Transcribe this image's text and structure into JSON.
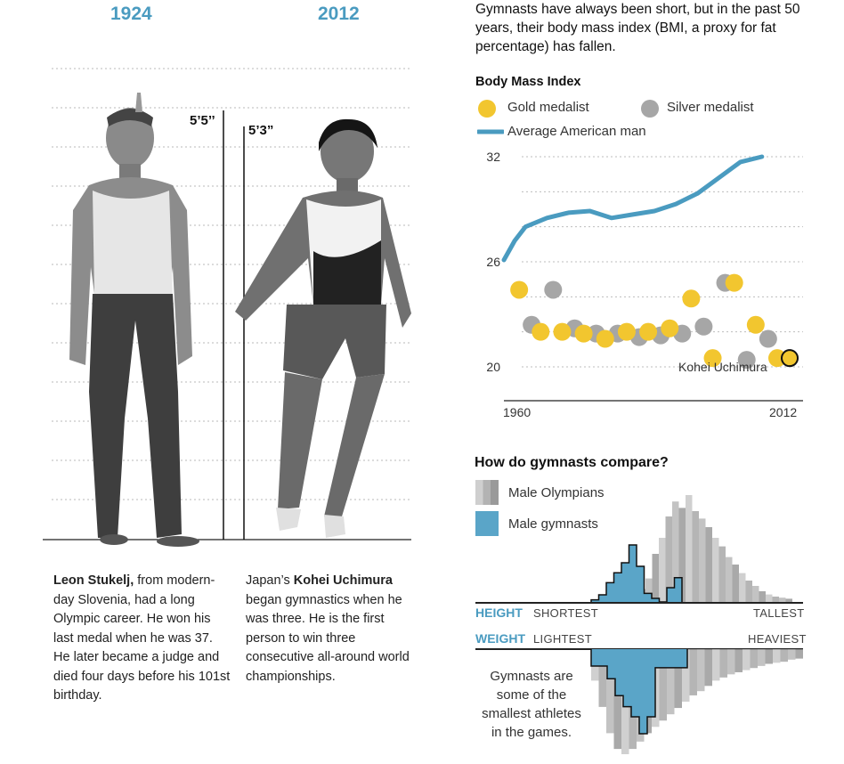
{
  "header": {
    "year_left": "1924",
    "year_right": "2012",
    "intro": "Gymnasts have always been short, but in the past 50 years, their body mass index (BMI, a proxy for fat percentage) has fallen."
  },
  "figures": {
    "left_height": "5’5’’",
    "right_height": "5’3”"
  },
  "captions": {
    "left_name": "Leon Stukelj,",
    "left_text": " from modern-day Slovenia, had a long Olympic career. He won his last medal when he was 37. He later became a judge and died four days before his 101st birthday.",
    "right_prefix": "Japan’s ",
    "right_name": "Kohei Uchimura",
    "right_text": " began gymnastics when he was three. He is the first person to win three consecutive all-around world championships."
  },
  "bmi_chart": {
    "title": "Body Mass Index",
    "legend_gold": "Gold medalist",
    "legend_silver": "Silver medalist",
    "legend_line": "Average American man",
    "annotation": "Kohei Uchimura",
    "x_start_label": "1960",
    "x_end_label": "2012",
    "y_ticks": [
      "32",
      "26",
      "20"
    ]
  },
  "compare": {
    "title": "How do gymnasts compare?",
    "legend_olympians": "Male Olympians",
    "legend_gymnasts": "Male gymnasts",
    "height_label": "HEIGHT",
    "height_low": "SHORTEST",
    "height_high": "TALLEST",
    "weight_label": "WEIGHT",
    "weight_low": "LIGHTEST",
    "weight_high": "HEAVIEST",
    "note": "Gymnasts are some of the smallest athletes in the games."
  },
  "colors": {
    "accent_blue": "#4a9bc0",
    "gold": "#f2c62f",
    "silver": "#a6a6a6",
    "hist_gray": "#9a9a9a",
    "hist_blue": "#5aa5c8"
  },
  "chart_data": [
    {
      "type": "scatter",
      "title": "Body Mass Index",
      "x_range": [
        1960,
        2012
      ],
      "ylim": [
        19,
        33
      ],
      "y_ticks": [
        20,
        26,
        32
      ],
      "series": [
        {
          "name": "Average American man",
          "kind": "line",
          "x": [
            1960,
            1962,
            1964,
            1968,
            1972,
            1976,
            1980,
            1984,
            1988,
            1992,
            1996,
            2000,
            2004,
            2008
          ],
          "y": [
            26.1,
            27.2,
            28.0,
            28.5,
            28.8,
            28.9,
            28.5,
            28.7,
            28.9,
            29.3,
            29.9,
            30.8,
            31.7,
            32.0
          ]
        },
        {
          "name": "Gold medalist",
          "kind": "points",
          "x": [
            1964,
            1968,
            1972,
            1976,
            1980,
            1984,
            1988,
            1992,
            1996,
            2000,
            2004,
            2008,
            2012
          ],
          "y": [
            24.4,
            22.0,
            22.0,
            21.9,
            21.6,
            22.0,
            22.0,
            22.2,
            23.9,
            20.5,
            24.8,
            22.4,
            20.5
          ]
        },
        {
          "name": "Silver medalist",
          "kind": "points",
          "x": [
            1964,
            1968,
            1972,
            1976,
            1980,
            1984,
            1988,
            1992,
            1996,
            2000,
            2004,
            2008,
            2012
          ],
          "y": [
            22.4,
            24.4,
            22.2,
            21.9,
            21.9,
            21.7,
            21.8,
            21.9,
            22.3,
            24.8,
            20.4,
            21.6,
            20.5
          ]
        },
        {
          "name": "Kohei Uchimura",
          "kind": "highlight",
          "x": [
            2012
          ],
          "y": [
            20.5
          ]
        }
      ]
    },
    {
      "type": "bar",
      "title": "How do gymnasts compare?",
      "subtitle": "HEIGHT",
      "series": [
        {
          "name": "Male Olympians",
          "values": [
            0.05,
            0.12,
            0.22,
            0.45,
            0.6,
            0.8,
            0.94,
            0.88,
            1.0,
            0.85,
            0.78,
            0.7,
            0.6,
            0.52,
            0.42,
            0.35,
            0.27,
            0.2,
            0.15,
            0.1,
            0.07,
            0.05,
            0.04,
            0.03
          ]
        },
        {
          "name": "Male gymnasts",
          "values": [
            0.03,
            0.1,
            0.27,
            0.41,
            0.55,
            0.8,
            0.5,
            0.12,
            0.05,
            0.0,
            0.2,
            0.34
          ]
        }
      ]
    },
    {
      "type": "bar",
      "title": "How do gymnasts compare?",
      "subtitle": "WEIGHT",
      "series": [
        {
          "name": "Male Olympians",
          "values": [
            0.3,
            0.55,
            0.8,
            0.95,
            1.0,
            0.95,
            0.88,
            0.8,
            0.74,
            0.68,
            0.62,
            0.56,
            0.5,
            0.44,
            0.4,
            0.35,
            0.3,
            0.27,
            0.24,
            0.22,
            0.2,
            0.18,
            0.16,
            0.14,
            0.13,
            0.12,
            0.1,
            0.09
          ]
        },
        {
          "name": "Male gymnasts",
          "values": [
            0.2,
            0.2,
            0.35,
            0.55,
            0.68,
            0.8,
            1.0,
            0.8,
            0.22,
            0.22,
            0.22,
            0.22
          ]
        }
      ]
    }
  ]
}
